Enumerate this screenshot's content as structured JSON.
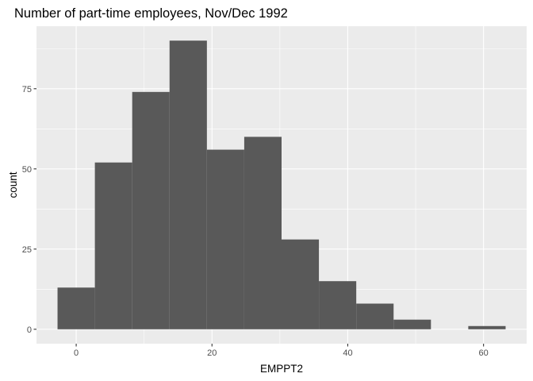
{
  "chart_data": {
    "type": "bar",
    "title": "Number of part-time employees, Nov/Dec 1992",
    "xlabel": "EMPPT2",
    "ylabel": "count",
    "bin_width": 5.5,
    "bins": [
      {
        "x0": -2.75,
        "x1": 2.75,
        "count": 13
      },
      {
        "x0": 2.75,
        "x1": 8.25,
        "count": 52
      },
      {
        "x0": 8.25,
        "x1": 13.75,
        "count": 74
      },
      {
        "x0": 13.75,
        "x1": 19.25,
        "count": 90
      },
      {
        "x0": 19.25,
        "x1": 24.75,
        "count": 56
      },
      {
        "x0": 24.75,
        "x1": 30.25,
        "count": 60
      },
      {
        "x0": 30.25,
        "x1": 35.75,
        "count": 28
      },
      {
        "x0": 35.75,
        "x1": 41.25,
        "count": 15
      },
      {
        "x0": 41.25,
        "x1": 46.75,
        "count": 8
      },
      {
        "x0": 46.75,
        "x1": 52.25,
        "count": 3
      },
      {
        "x0": 52.25,
        "x1": 57.75,
        "count": 0
      },
      {
        "x0": 57.75,
        "x1": 63.25,
        "count": 1
      }
    ],
    "xlim": [
      -5.85,
      66.35
    ],
    "ylim": [
      -4.5,
      94.5
    ],
    "x_ticks": [
      0,
      20,
      40,
      60
    ],
    "x_tick_labels": [
      "0",
      "20",
      "40",
      "60"
    ],
    "y_ticks": [
      0,
      25,
      50,
      75
    ],
    "y_tick_labels": [
      "0",
      "25",
      "50",
      "75"
    ],
    "grid": true,
    "colors": {
      "panel": "#EBEBEB",
      "grid": "#FFFFFF",
      "bar": "#595959",
      "tick_text": "#4D4D4D"
    }
  }
}
